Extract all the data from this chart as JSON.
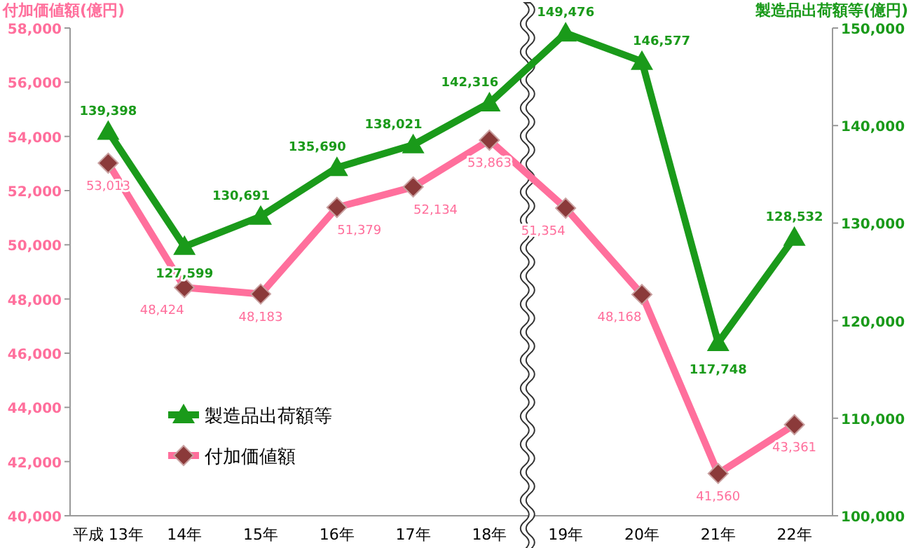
{
  "chart_data": {
    "type": "line",
    "ylabel": "付加価値額(億円)",
    "y2label": "製造品出荷額等(億円)",
    "categories": [
      "平成 13年",
      "14年",
      "15年",
      "16年",
      "17年",
      "18年",
      "19年",
      "20年",
      "21年",
      "22年"
    ],
    "series": [
      {
        "name": "製造品出荷額等",
        "color": "#1a9a1a",
        "axis": "y2",
        "marker": "triangle",
        "values": [
          139398,
          127599,
          130691,
          135690,
          138021,
          142316,
          149476,
          146577,
          117748,
          128532
        ],
        "value_labels": [
          "139,398",
          "127,599",
          "130,691",
          "135,690",
          "138,021",
          "142,316",
          "149,476",
          "146,577",
          "117,748",
          "128,532"
        ]
      },
      {
        "name": "付加価値額",
        "color": "#ff6f9c",
        "marker": "diamond",
        "values": [
          53013,
          48424,
          48183,
          51379,
          52134,
          53863,
          51354,
          48168,
          41560,
          43361
        ],
        "value_labels": [
          "53,013",
          "48,424",
          "48,183",
          "51,379",
          "52,134",
          "53,863",
          "51,354",
          "48,168",
          "41,560",
          "43,361"
        ]
      }
    ],
    "ylim": [
      40000,
      58000
    ],
    "yticks": [
      {
        "value": 40000,
        "label": "40,000"
      },
      {
        "value": 42000,
        "label": "42,000"
      },
      {
        "value": 44000,
        "label": "44,000"
      },
      {
        "value": 46000,
        "label": "46,000"
      },
      {
        "value": 48000,
        "label": "48,000"
      },
      {
        "value": 50000,
        "label": "50,000"
      },
      {
        "value": 52000,
        "label": "52,000"
      },
      {
        "value": 54000,
        "label": "54,000"
      },
      {
        "value": 56000,
        "label": "56,000"
      },
      {
        "value": 58000,
        "label": "58,000"
      }
    ],
    "y2lim": [
      100000,
      150000
    ],
    "y2ticks": [
      {
        "value": 100000,
        "label": "100,000"
      },
      {
        "value": 110000,
        "label": "110,000"
      },
      {
        "value": 120000,
        "label": "120,000"
      },
      {
        "value": 130000,
        "label": "130,000"
      },
      {
        "value": 140000,
        "label": "140,000"
      },
      {
        "value": 150000,
        "label": "150,000"
      }
    ],
    "legend": "bottom left",
    "grid": false
  }
}
